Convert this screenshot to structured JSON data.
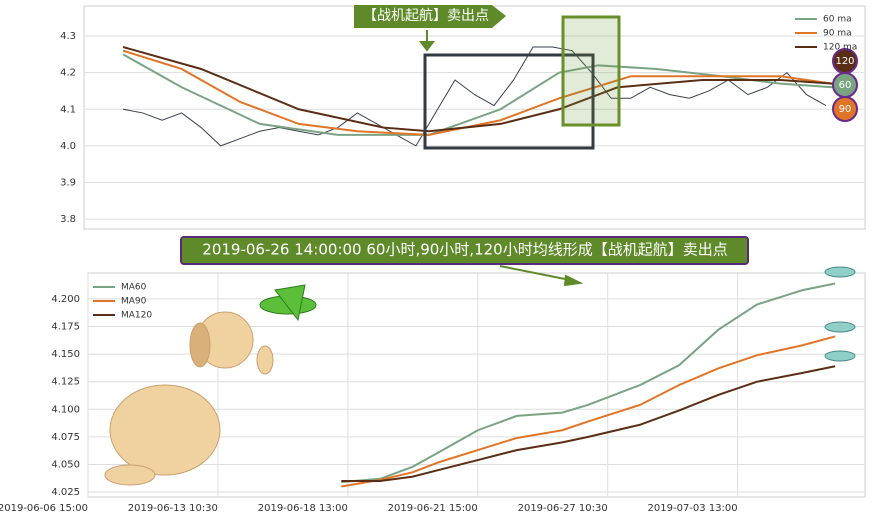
{
  "chart_data": [
    {
      "type": "line",
      "grid": true,
      "annotation": "【战机起航】卖出点",
      "badges": [
        "120",
        "60",
        "90"
      ],
      "xlim": [
        0,
        120
      ],
      "ylim": [
        3.773,
        4.382
      ],
      "yticks": [
        3.8,
        3.9,
        {
          "value": 4,
          "label": "4.0"
        },
        4.1,
        4.2,
        4.3
      ],
      "series": [
        {
          "color": "#3a3f4b",
          "x": [
            6,
            9,
            12,
            15,
            18,
            21,
            24,
            27,
            30,
            33,
            36,
            39,
            42,
            45,
            48,
            51,
            54,
            57,
            60,
            63,
            66,
            69,
            72,
            75,
            78,
            81,
            84,
            87,
            90,
            93,
            96,
            99,
            102,
            105,
            108,
            111,
            114
          ],
          "values": [
            4.1,
            4.09,
            4.07,
            4.09,
            4.05,
            4.0,
            4.02,
            4.04,
            4.05,
            4.04,
            4.03,
            4.05,
            4.09,
            4.06,
            4.03,
            4.0,
            4.09,
            4.18,
            4.14,
            4.11,
            4.18,
            4.27,
            4.27,
            4.26,
            4.2,
            4.13,
            4.13,
            4.16,
            4.14,
            4.13,
            4.15,
            4.18,
            4.14,
            4.16,
            4.2,
            4.14,
            4.11
          ]
        },
        {
          "name": "60 ma",
          "color": "#7aa383",
          "x": [
            6,
            15,
            27,
            39,
            53,
            64,
            73,
            79,
            88,
            98,
            107,
            115
          ],
          "values": [
            4.25,
            4.16,
            4.06,
            4.03,
            4.03,
            4.1,
            4.2,
            4.22,
            4.21,
            4.19,
            4.17,
            4.16
          ]
        },
        {
          "name": "90 ma",
          "color": "#e07528",
          "x": [
            6,
            15,
            24,
            33,
            42,
            53,
            64,
            73,
            84,
            95,
            107,
            115
          ],
          "values": [
            4.26,
            4.21,
            4.12,
            4.06,
            4.04,
            4.03,
            4.07,
            4.13,
            4.19,
            4.19,
            4.19,
            4.17
          ]
        },
        {
          "name": "120 ma",
          "color": "#5a2e15",
          "x": [
            6,
            18,
            33,
            46,
            53,
            64,
            73,
            82,
            95,
            107,
            115
          ],
          "values": [
            4.27,
            4.21,
            4.1,
            4.05,
            4.04,
            4.06,
            4.1,
            4.16,
            4.18,
            4.18,
            4.17
          ]
        }
      ]
    },
    {
      "type": "line",
      "grid": true,
      "annotation": "2019-06-26 14:00:00 60小时,90小时,120小时均线形成【战机起航】卖出点",
      "xlim": [
        0,
        119.6
      ],
      "ylim": [
        4.0205,
        4.2235
      ],
      "xticks": [
        {
          "value": 0,
          "label": "2019-06-06 15:00"
        },
        {
          "value": 20,
          "label": "2019-06-13 10:30"
        },
        {
          "value": 40,
          "label": "2019-06-18 13:00"
        },
        {
          "value": 60,
          "label": "2019-06-21 15:00"
        },
        {
          "value": 80,
          "label": "2019-06-27 10:30"
        },
        {
          "value": 100,
          "label": "2019-07-03 13:00"
        }
      ],
      "yticks": [
        4.025,
        {
          "value": 4.05,
          "label": "4.050"
        },
        4.075,
        {
          "value": 4.1,
          "label": "4.100"
        },
        4.125,
        {
          "value": 4.15,
          "label": "4.150"
        },
        4.175,
        {
          "value": 4.2,
          "label": "4.200"
        }
      ],
      "series": [
        {
          "name": "MA60",
          "color": "#7aa383",
          "x": [
            39,
            45,
            50,
            54,
            60,
            66,
            73,
            77,
            85,
            91,
            97,
            103,
            110,
            115
          ],
          "values": [
            4.034,
            4.037,
            4.048,
            4.061,
            4.081,
            4.094,
            4.097,
            4.104,
            4.122,
            4.14,
            4.172,
            4.195,
            4.208,
            4.214
          ]
        },
        {
          "name": "MA90",
          "color": "#e07528",
          "x": [
            39,
            45,
            50,
            54,
            60,
            66,
            73,
            77,
            85,
            91,
            97,
            103,
            110,
            115
          ],
          "values": [
            4.03,
            4.036,
            4.043,
            4.052,
            4.063,
            4.074,
            4.081,
            4.089,
            4.104,
            4.122,
            4.137,
            4.149,
            4.158,
            4.166
          ]
        },
        {
          "name": "MA120",
          "color": "#5a2e15",
          "x": [
            39,
            45,
            50,
            54,
            60,
            66,
            73,
            77,
            85,
            91,
            97,
            103,
            110,
            115
          ],
          "values": [
            4.035,
            4.035,
            4.039,
            4.045,
            4.054,
            4.063,
            4.07,
            4.075,
            4.086,
            4.099,
            4.113,
            4.125,
            4.133,
            4.139
          ]
        }
      ]
    }
  ]
}
